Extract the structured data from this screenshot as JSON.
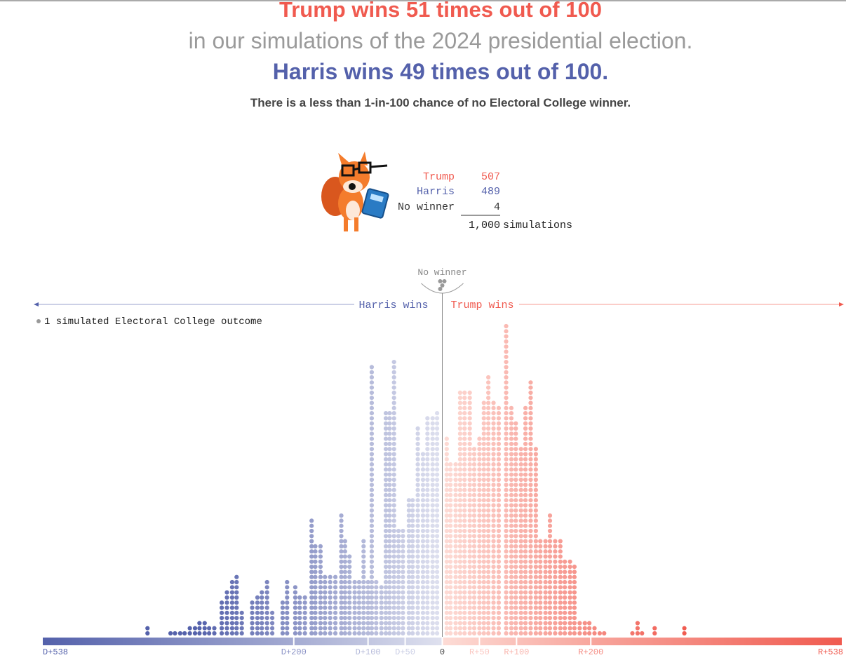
{
  "header": {
    "line1": "Trump wins 51 times out of 100",
    "line2": "in our simulations of the 2024 presidential election.",
    "line3": "Harris wins 49 times out of 100.",
    "note": "There is a less than 1-in-100 chance of no Electoral College winner."
  },
  "tally": {
    "rows": [
      {
        "label": "Trump",
        "value": 507
      },
      {
        "label": "Harris",
        "value": 489
      },
      {
        "label": "No winner",
        "value": 4
      }
    ],
    "total": "1,000",
    "total_label": "simulations"
  },
  "chart_data": {
    "type": "dotplot",
    "no_winner_label": "No winner",
    "left_label": "Harris wins",
    "right_label": "Trump wins",
    "legend": "1 simulated Electoral College outcome",
    "x": [
      -397,
      -366,
      -360,
      -353,
      -347,
      -340,
      -333,
      -327,
      -320,
      -314,
      -307,
      -297,
      -290,
      -283,
      -277,
      -270,
      -256,
      -249,
      -243,
      -236,
      -229,
      -215,
      -209,
      -198,
      -192,
      -185,
      -176,
      -171,
      -164,
      -158,
      -151,
      -144,
      -136,
      -131,
      -125,
      -118,
      -112,
      -106,
      -100,
      -95,
      -89,
      -82,
      -76,
      -71,
      -65,
      -59,
      -53,
      -45,
      -40,
      -33,
      -26,
      -20,
      -13,
      -7,
      6,
      11,
      18,
      24,
      30,
      37,
      43,
      50,
      56,
      62,
      69,
      76,
      86,
      93,
      99,
      106,
      112,
      119,
      126,
      132,
      139,
      145,
      152,
      159,
      165,
      172,
      178,
      185,
      192,
      198,
      205,
      212,
      218,
      256,
      263,
      269,
      286,
      326
    ],
    "values": [
      2,
      1,
      1,
      1,
      1,
      2,
      2,
      3,
      3,
      2,
      2,
      7,
      9,
      11,
      12,
      5,
      7,
      8,
      9,
      11,
      5,
      7,
      11,
      10,
      8,
      8,
      23,
      18,
      18,
      12,
      12,
      12,
      24,
      19,
      16,
      11,
      11,
      19,
      11,
      53,
      11,
      10,
      44,
      44,
      54,
      21,
      21,
      27,
      27,
      41,
      36,
      43,
      43,
      44,
      39,
      34,
      34,
      48,
      48,
      48,
      37,
      39,
      46,
      51,
      46,
      45,
      61,
      45,
      42,
      37,
      45,
      50,
      37,
      19,
      19,
      24,
      19,
      19,
      15,
      15,
      14,
      3,
      3,
      3,
      2,
      1,
      1,
      1,
      3,
      1,
      2,
      2
    ],
    "xlim": [
      -538,
      538
    ],
    "xticks": [
      {
        "value": -538,
        "label": "D+538"
      },
      {
        "value": -200,
        "label": "D+200"
      },
      {
        "value": -100,
        "label": "D+100"
      },
      {
        "value": -50,
        "label": "D+50"
      },
      0,
      {
        "value": 50,
        "label": "R+50"
      },
      {
        "value": 100,
        "label": "R+100"
      },
      {
        "value": 200,
        "label": "R+200"
      },
      {
        "value": 538,
        "label": "R+538"
      }
    ],
    "colors": {
      "harris": "#5461ab",
      "trump": "#f05a4f",
      "harris_light": "#dfe1ef",
      "trump_light": "#fddcd6",
      "no_winner": "#999999"
    }
  }
}
